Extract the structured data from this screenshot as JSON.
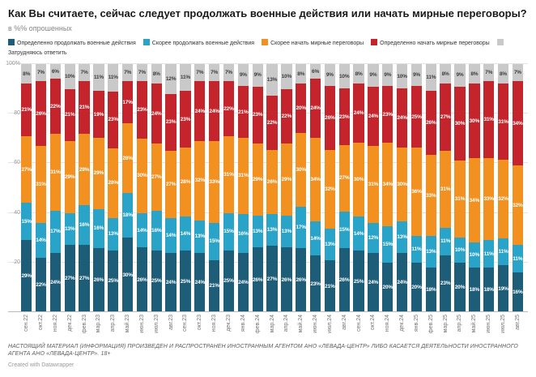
{
  "header": {
    "title": "Как Вы считаете, сейчас следует продолжать военные действия или начать мирные переговоры?",
    "subtitle": "в %% опрошенных"
  },
  "chart_data": {
    "type": "bar",
    "stacked": true,
    "percent": true,
    "ylim": [
      0,
      100
    ],
    "grid": true,
    "legend_position": "top",
    "yticks": [
      {
        "value": 100,
        "label": "100%"
      },
      {
        "value": 80,
        "label": "80"
      },
      {
        "value": 60,
        "label": "60"
      },
      {
        "value": 40,
        "label": "40"
      },
      {
        "value": 20,
        "label": "20"
      }
    ],
    "gridlines": [
      0,
      20,
      40,
      60,
      80,
      100
    ],
    "categories": [
      "сен.22",
      "окт.22",
      "ноя.22",
      "дек.22",
      "фев.23",
      "мар.23",
      "апр.23",
      "май.23",
      "июн.23",
      "июл.23",
      "авг.23",
      "сен.23",
      "окт.23",
      "ноя.23",
      "дек.23",
      "янв.24",
      "фев.24",
      "мар.24",
      "апр.24",
      "май.24",
      "июн.24",
      "июл.24",
      "авг.24",
      "сен.24",
      "окт.24",
      "ноя.24",
      "дек.24",
      "янв.25",
      "фев.25",
      "мар.25",
      "апр.25",
      "май.25",
      "июн.25",
      "июл.25",
      "авг.25"
    ],
    "series": [
      {
        "name": "Определенно продолжать военные действия",
        "color": "#1d5d78",
        "label_color": "#ffffff",
        "values": [
          29,
          22,
          24,
          27,
          27,
          26,
          25,
          30,
          26,
          25,
          24,
          25,
          24,
          21,
          25,
          24,
          26,
          27,
          26,
          26,
          23,
          21,
          26,
          25,
          24,
          20,
          24,
          20,
          18,
          23,
          20,
          18,
          18,
          19,
          16
        ]
      },
      {
        "name": "Скорее продолжать военные действия",
        "color": "#2aa3c9",
        "label_color": "#ffffff",
        "values": [
          15,
          14,
          17,
          13,
          16,
          16,
          13,
          18,
          14,
          16,
          14,
          14,
          13,
          15,
          15,
          16,
          13,
          13,
          13,
          17,
          14,
          13,
          15,
          14,
          12,
          15,
          13,
          11,
          13,
          11,
          10,
          10,
          11,
          11,
          11
        ]
      },
      {
        "name": "Скорее начать мирные переговоры",
        "color": "#f29120",
        "label_color": "#ffffff",
        "values": [
          27,
          31,
          31,
          29,
          29,
          29,
          28,
          28,
          30,
          27,
          27,
          28,
          32,
          33,
          31,
          31,
          29,
          26,
          29,
          30,
          34,
          32,
          27,
          30,
          31,
          34,
          30,
          36,
          33,
          31,
          31,
          34,
          33,
          32,
          32
        ]
      },
      {
        "name": "Определенно начать мирные переговоры",
        "color": "#c4242b",
        "label_color": "#ffffff",
        "values": [
          21,
          26,
          22,
          21,
          21,
          19,
          23,
          17,
          23,
          24,
          23,
          23,
          24,
          24,
          22,
          21,
          23,
          22,
          22,
          20,
          24,
          26,
          23,
          24,
          24,
          23,
          24,
          25,
          26,
          27,
          30,
          30,
          31,
          31,
          34
        ]
      },
      {
        "name": "Затрудняюсь ответить",
        "color": "#c9c9c9",
        "label_color": "#3d3d3d",
        "values": [
          8,
          7,
          6,
          10,
          7,
          11,
          11,
          7,
          7,
          8,
          12,
          11,
          7,
          7,
          7,
          9,
          9,
          13,
          10,
          8,
          6,
          9,
          10,
          8,
          9,
          9,
          10,
          9,
          11,
          8,
          9,
          8,
          7,
          8,
          7
        ]
      }
    ]
  },
  "footer": {
    "disclaimer": "НАСТОЯЩИЙ МАТЕРИАЛ (ИНФОРМАЦИЯ) ПРОИЗВЕДЕН И РАСПРОСТРАНЕН ИНОСТРАННЫМ АГЕНТОМ АНО «ЛЕВАДА-ЦЕНТР» ЛИБО КАСАЕТСЯ ДЕЯТЕЛЬНОСТИ ИНОСТРАННОГО АГЕНТА АНО «ЛЕВАДА-ЦЕНТР». 18+",
    "credit": "Created with Datawrapper"
  }
}
